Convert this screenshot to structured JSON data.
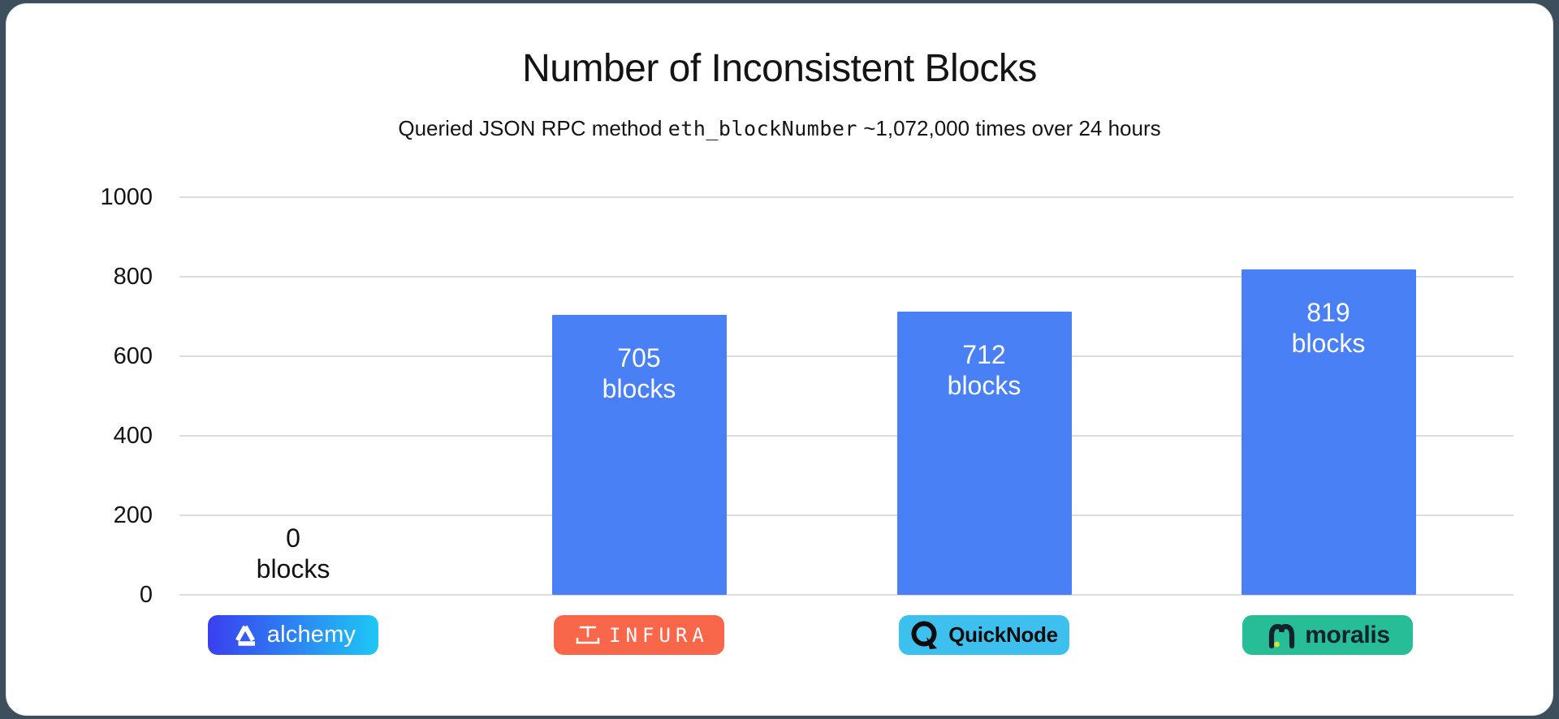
{
  "page": {
    "title": "Number of Inconsistent Blocks",
    "subtitle": {
      "prefix": "Queried JSON RPC method ",
      "code": "eth_blockNumber",
      "suffix": " ~1,072,000 times over 24 hours"
    }
  },
  "chart_data": {
    "type": "bar",
    "title": "Number of Inconsistent Blocks",
    "subtitle": "Queried JSON RPC method eth_blockNumber ~1,072,000 times over 24 hours",
    "categories": [
      "Alchemy",
      "Infura",
      "QuickNode",
      "Moralis"
    ],
    "values": [
      0,
      705,
      712,
      819
    ],
    "bar_labels": [
      "0 blocks",
      "705 blocks",
      "712 blocks",
      "819 blocks"
    ],
    "unit_label": "blocks",
    "yticks": [
      0,
      200,
      400,
      600,
      800,
      1000
    ],
    "ylim": [
      0,
      1000
    ],
    "grid": true,
    "legend": false,
    "bar_color": "#4a80f5",
    "inside_label_color": "#ffffff",
    "outside_label_color": "#111111"
  },
  "brands": [
    {
      "id": "alchemy",
      "label": "alchemy",
      "bg_start": "#3a3ff0",
      "bg_end": "#1fc7f4",
      "text_color": "#ffffff"
    },
    {
      "id": "infura",
      "label": "INFURA",
      "bg": "#f8674a",
      "text_color": "#ffffff"
    },
    {
      "id": "quicknode",
      "label": "QuickNode",
      "bg": "#3ec0ef",
      "text_color": "#0c0c0c"
    },
    {
      "id": "moralis",
      "label": "moralis",
      "bg": "#27bd96",
      "text_color": "#13222d"
    }
  ]
}
